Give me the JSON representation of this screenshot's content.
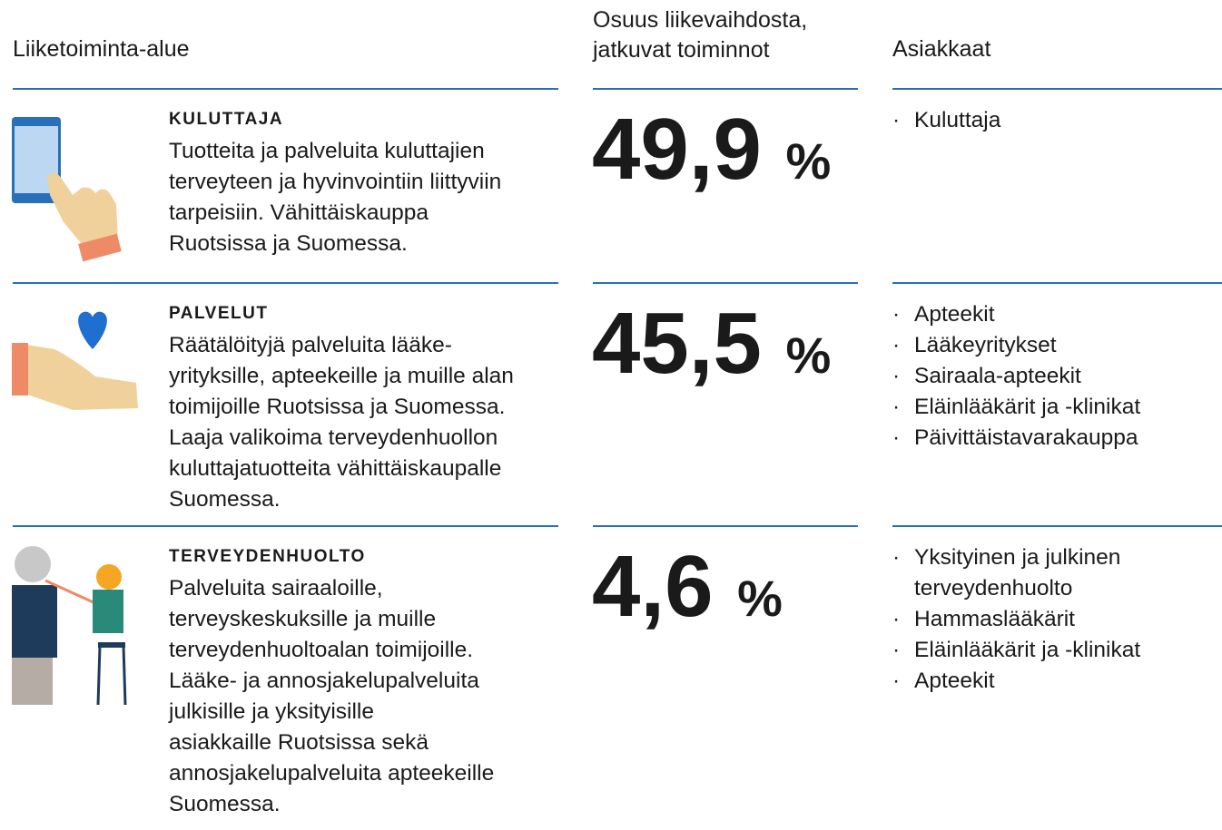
{
  "header": {
    "area": "Liiketoiminta-alue",
    "share": [
      "Osuus liikevaihdosta,",
      "jatkuvat toiminnot"
    ],
    "customers": "Asiakkaat"
  },
  "rows": [
    {
      "title": "KULUTTAJA",
      "description": [
        "Tuotteita ja palveluita kuluttajien",
        "terveyteen ja hyvinvointiin liittyviin",
        "tarpeisiin. Vähittäiskauppa",
        "Ruotsissa ja Suomessa."
      ],
      "share": "49,9",
      "unit": "%",
      "customers": [
        "Kuluttaja"
      ]
    },
    {
      "title": "PALVELUT",
      "description": [
        "Räätälöityjä palveluita lääke-",
        "yrityksille, apteekeille ja muille alan",
        "toimijoille Ruotsissa ja Suomessa.",
        "Laaja valikoima terveydenhuollon",
        "kuluttajatuotteita vähittäiskaupalle",
        "Suomessa."
      ],
      "share": "45,5",
      "unit": "%",
      "customers": [
        "Apteekit",
        "Lääkeyritykset",
        "Sairaala-apteekit",
        "Eläinlääkärit ja -klinikat",
        "Päivittäistavarakauppa"
      ]
    },
    {
      "title": "TERVEYDENHUOLTO",
      "description": [
        "Palveluita sairaaloille,",
        "terveyskeskuksille ja muille",
        "terveydenhuoltoalan toimijoille.",
        "Lääke- ja annosjakelupalveluita",
        "julkisille ja yksityisille",
        "asiakkaille Ruotsissa sekä",
        "annosjakelupalveluita apteekeille",
        "Suomessa."
      ],
      "share": "4,6",
      "unit": "%",
      "customers": [
        "Yksityinen ja julkinen terveydenhuolto",
        "Hammaslääkärit",
        "Eläinlääkärit ja -klinikat",
        "Apteekit"
      ]
    }
  ]
}
